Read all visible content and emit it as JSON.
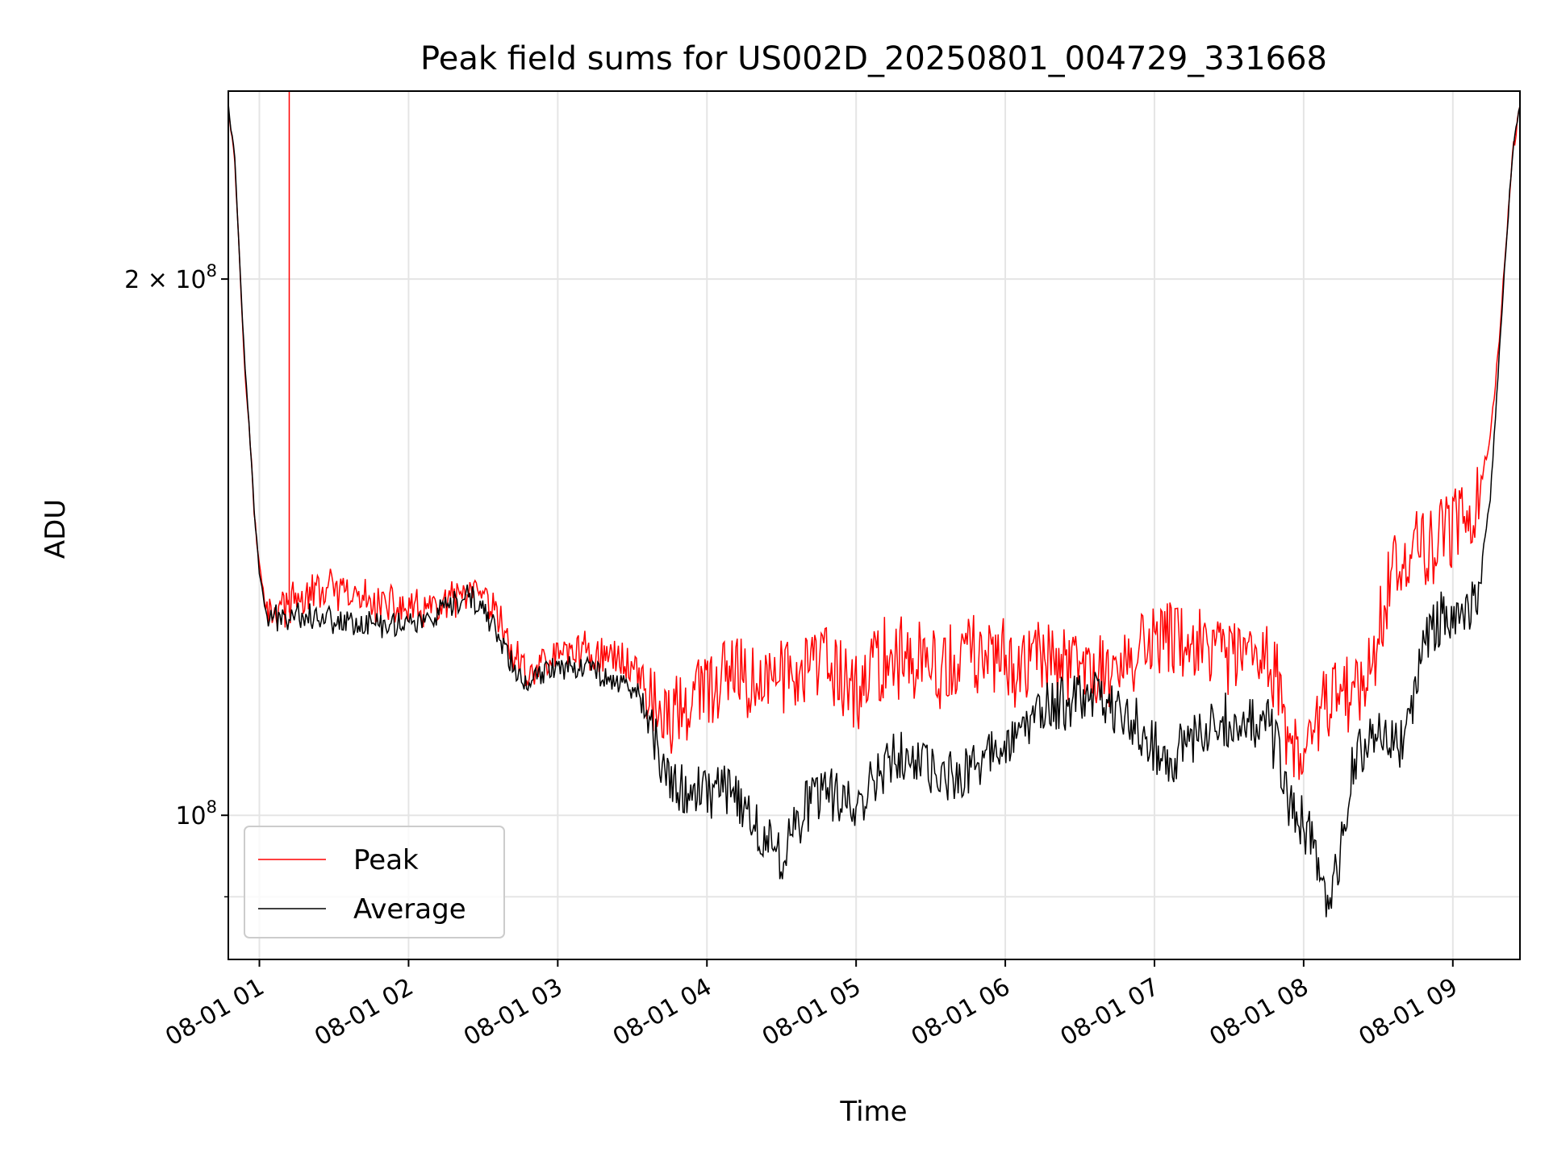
{
  "chart_data": {
    "type": "line",
    "title": "Peak field sums for US002D_20250801_004729_331668",
    "xlabel": "Time",
    "ylabel": "ADU",
    "x_ticks": [
      "08-01 01",
      "08-01 02",
      "08-01 03",
      "08-01 04",
      "08-01 05",
      "08-01 06",
      "08-01 07",
      "08-01 08",
      "08-01 09"
    ],
    "xlim": [
      "2025-08-01 00:47:30",
      "2025-08-01 09:27:00"
    ],
    "y_scale": "log",
    "ylim": [
      83000000,
      255000000
    ],
    "y_ticks": [
      {
        "value": 100000000,
        "base": "10",
        "exponent": "8",
        "prefix": ""
      },
      {
        "value": 200000000,
        "base": "10",
        "exponent": "8",
        "prefix": "2 × "
      }
    ],
    "grid": true,
    "legend": {
      "position": "lower-left",
      "entries": [
        "Peak",
        "Average"
      ]
    },
    "series": [
      {
        "name": "Peak",
        "color": "#ff0000",
        "points": [
          [
            "2025-08-01 00:47:30",
            250000000
          ],
          [
            "2025-08-01 00:50:00",
            235000000
          ],
          [
            "2025-08-01 00:52:00",
            205000000
          ],
          [
            "2025-08-01 00:54:00",
            180000000
          ],
          [
            "2025-08-01 00:56:00",
            165000000
          ],
          [
            "2025-08-01 00:58:00",
            147000000
          ],
          [
            "2025-08-01 01:00:00",
            138000000
          ],
          [
            "2025-08-01 01:03:00",
            130000000
          ],
          [
            "2025-08-01 01:08:00",
            130500000
          ],
          [
            "2025-08-01 01:14:00",
            131500000
          ],
          [
            "2025-08-01 01:20:00",
            133000000
          ],
          [
            "2025-08-01 01:28:00",
            134000000
          ],
          [
            "2025-08-01 01:36:00",
            132500000
          ],
          [
            "2025-08-01 01:44:00",
            132000000
          ],
          [
            "2025-08-01 01:52:00",
            131000000
          ],
          [
            "2025-08-01 02:00:00",
            130500000
          ],
          [
            "2025-08-01 02:08:00",
            130000000
          ],
          [
            "2025-08-01 02:16:00",
            131500000
          ],
          [
            "2025-08-01 02:24:00",
            133000000
          ],
          [
            "2025-08-01 02:30:00",
            132000000
          ],
          [
            "2025-08-01 02:36:00",
            129000000
          ],
          [
            "2025-08-01 02:42:00",
            123000000
          ],
          [
            "2025-08-01 02:48:00",
            120000000
          ],
          [
            "2025-08-01 02:55:00",
            122000000
          ],
          [
            "2025-08-01 03:00:00",
            123000000
          ],
          [
            "2025-08-01 03:08:00",
            124000000
          ],
          [
            "2025-08-01 03:16:00",
            123000000
          ],
          [
            "2025-08-01 03:24:00",
            122500000
          ],
          [
            "2025-08-01 03:32:00",
            121000000
          ],
          [
            "2025-08-01 03:38:00",
            116000000
          ],
          [
            "2025-08-01 03:43:00",
            112500000
          ],
          [
            "2025-08-01 03:50:00",
            115000000
          ],
          [
            "2025-08-01 04:00:00",
            117500000
          ],
          [
            "2025-08-01 04:10:00",
            119500000
          ],
          [
            "2025-08-01 04:20:00",
            118500000
          ],
          [
            "2025-08-01 04:30:00",
            120000000
          ],
          [
            "2025-08-01 04:40:00",
            121000000
          ],
          [
            "2025-08-01 04:50:00",
            121500000
          ],
          [
            "2025-08-01 05:00:00",
            116500000
          ],
          [
            "2025-08-01 05:05:00",
            120500000
          ],
          [
            "2025-08-01 05:15:00",
            123000000
          ],
          [
            "2025-08-01 05:25:00",
            122000000
          ],
          [
            "2025-08-01 05:35:00",
            120000000
          ],
          [
            "2025-08-01 05:45:00",
            123500000
          ],
          [
            "2025-08-01 05:55:00",
            122000000
          ],
          [
            "2025-08-01 06:05:00",
            121500000
          ],
          [
            "2025-08-01 06:15:00",
            122500000
          ],
          [
            "2025-08-01 06:25:00",
            121000000
          ],
          [
            "2025-08-01 06:35:00",
            120500000
          ],
          [
            "2025-08-01 06:45:00",
            121000000
          ],
          [
            "2025-08-01 06:55:00",
            124000000
          ],
          [
            "2025-08-01 07:05:00",
            126000000
          ],
          [
            "2025-08-01 07:15:00",
            125000000
          ],
          [
            "2025-08-01 07:25:00",
            123000000
          ],
          [
            "2025-08-01 07:35:00",
            122000000
          ],
          [
            "2025-08-01 07:45:00",
            122500000
          ],
          [
            "2025-08-01 07:50:00",
            119500000
          ],
          [
            "2025-08-01 07:55:00",
            108500000
          ],
          [
            "2025-08-01 08:00:00",
            106500000
          ],
          [
            "2025-08-01 08:05:00",
            111500000
          ],
          [
            "2025-08-01 08:10:00",
            117000000
          ],
          [
            "2025-08-01 08:15:00",
            118500000
          ],
          [
            "2025-08-01 08:20:00",
            117000000
          ],
          [
            "2025-08-01 08:25:00",
            119500000
          ],
          [
            "2025-08-01 08:30:00",
            126000000
          ],
          [
            "2025-08-01 08:35:00",
            136500000
          ],
          [
            "2025-08-01 08:40:00",
            140500000
          ],
          [
            "2025-08-01 08:50:00",
            141500000
          ],
          [
            "2025-08-01 09:00:00",
            144500000
          ],
          [
            "2025-08-01 09:05:00",
            148000000
          ],
          [
            "2025-08-01 09:10:00",
            150500000
          ],
          [
            "2025-08-01 09:15:00",
            163000000
          ],
          [
            "2025-08-01 09:18:00",
            180000000
          ],
          [
            "2025-08-01 09:21:00",
            205000000
          ],
          [
            "2025-08-01 09:24:00",
            235000000
          ],
          [
            "2025-08-01 09:27:00",
            250000000
          ]
        ]
      },
      {
        "name": "Average",
        "color": "#000000",
        "points": [
          [
            "2025-08-01 00:47:30",
            250000000
          ],
          [
            "2025-08-01 00:50:00",
            235000000
          ],
          [
            "2025-08-01 00:52:00",
            205000000
          ],
          [
            "2025-08-01 00:54:00",
            180000000
          ],
          [
            "2025-08-01 00:56:00",
            165000000
          ],
          [
            "2025-08-01 00:58:00",
            147000000
          ],
          [
            "2025-08-01 01:00:00",
            137000000
          ],
          [
            "2025-08-01 01:03:00",
            129000000
          ],
          [
            "2025-08-01 01:08:00",
            129000000
          ],
          [
            "2025-08-01 01:14:00",
            130000000
          ],
          [
            "2025-08-01 01:20:00",
            129500000
          ],
          [
            "2025-08-01 01:28:00",
            129000000
          ],
          [
            "2025-08-01 01:36:00",
            128500000
          ],
          [
            "2025-08-01 01:44:00",
            128000000
          ],
          [
            "2025-08-01 01:52:00",
            128000000
          ],
          [
            "2025-08-01 02:00:00",
            128500000
          ],
          [
            "2025-08-01 02:08:00",
            128500000
          ],
          [
            "2025-08-01 02:16:00",
            130500000
          ],
          [
            "2025-08-01 02:24:00",
            132500000
          ],
          [
            "2025-08-01 02:30:00",
            130500000
          ],
          [
            "2025-08-01 02:36:00",
            126500000
          ],
          [
            "2025-08-01 02:42:00",
            121000000
          ],
          [
            "2025-08-01 02:48:00",
            118000000
          ],
          [
            "2025-08-01 02:55:00",
            120500000
          ],
          [
            "2025-08-01 03:00:00",
            121500000
          ],
          [
            "2025-08-01 03:08:00",
            121500000
          ],
          [
            "2025-08-01 03:16:00",
            120500000
          ],
          [
            "2025-08-01 03:24:00",
            119000000
          ],
          [
            "2025-08-01 03:32:00",
            117500000
          ],
          [
            "2025-08-01 03:38:00",
            112000000
          ],
          [
            "2025-08-01 03:43:00",
            104500000
          ],
          [
            "2025-08-01 03:50:00",
            103500000
          ],
          [
            "2025-08-01 04:00:00",
            103000000
          ],
          [
            "2025-08-01 04:10:00",
            104000000
          ],
          [
            "2025-08-01 04:20:00",
            98000000
          ],
          [
            "2025-08-01 04:30:00",
            95000000
          ],
          [
            "2025-08-01 04:40:00",
            101500000
          ],
          [
            "2025-08-01 04:50:00",
            103000000
          ],
          [
            "2025-08-01 05:00:00",
            101000000
          ],
          [
            "2025-08-01 05:05:00",
            104000000
          ],
          [
            "2025-08-01 05:15:00",
            108500000
          ],
          [
            "2025-08-01 05:25:00",
            106500000
          ],
          [
            "2025-08-01 05:35:00",
            104500000
          ],
          [
            "2025-08-01 05:45:00",
            106000000
          ],
          [
            "2025-08-01 05:55:00",
            108500000
          ],
          [
            "2025-08-01 06:05:00",
            112000000
          ],
          [
            "2025-08-01 06:15:00",
            114500000
          ],
          [
            "2025-08-01 06:25:00",
            115500000
          ],
          [
            "2025-08-01 06:35:00",
            117000000
          ],
          [
            "2025-08-01 06:45:00",
            114500000
          ],
          [
            "2025-08-01 06:55:00",
            111500000
          ],
          [
            "2025-08-01 07:05:00",
            107500000
          ],
          [
            "2025-08-01 07:15:00",
            109500000
          ],
          [
            "2025-08-01 07:25:00",
            114000000
          ],
          [
            "2025-08-01 07:35:00",
            112500000
          ],
          [
            "2025-08-01 07:45:00",
            113000000
          ],
          [
            "2025-08-01 07:50:00",
            108000000
          ],
          [
            "2025-08-01 07:55:00",
            100500000
          ],
          [
            "2025-08-01 08:00:00",
            99000000
          ],
          [
            "2025-08-01 08:05:00",
            96000000
          ],
          [
            "2025-08-01 08:10:00",
            89000000
          ],
          [
            "2025-08-01 08:15:00",
            95500000
          ],
          [
            "2025-08-01 08:20:00",
            107000000
          ],
          [
            "2025-08-01 08:25:00",
            110500000
          ],
          [
            "2025-08-01 08:30:00",
            110500000
          ],
          [
            "2025-08-01 08:35:00",
            110000000
          ],
          [
            "2025-08-01 08:40:00",
            110500000
          ],
          [
            "2025-08-01 08:50:00",
            126000000
          ],
          [
            "2025-08-01 09:00:00",
            131000000
          ],
          [
            "2025-08-01 09:05:00",
            129500000
          ],
          [
            "2025-08-01 09:10:00",
            134000000
          ],
          [
            "2025-08-01 09:15:00",
            150000000
          ],
          [
            "2025-08-01 09:18:00",
            175000000
          ],
          [
            "2025-08-01 09:21:00",
            205000000
          ],
          [
            "2025-08-01 09:24:00",
            235000000
          ],
          [
            "2025-08-01 09:27:00",
            250000000
          ]
        ]
      }
    ]
  }
}
